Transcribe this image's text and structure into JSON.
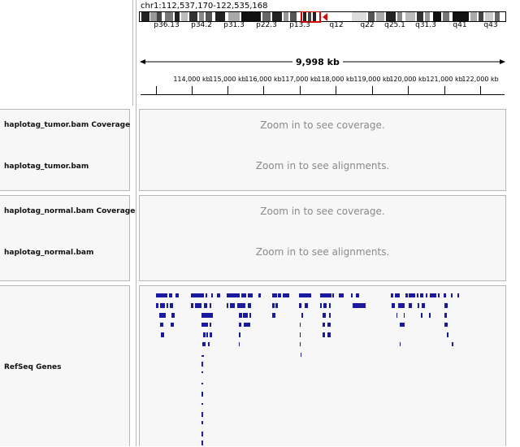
{
  "locus": {
    "text": "chr1:112,537,170-122,535,168"
  },
  "ideogram": {
    "band_labels": [
      "p36.13",
      "p34.2",
      "p31.3",
      "p22.3",
      "p13.3",
      "q12",
      "q22",
      "q25.1",
      "q31.3",
      "q41",
      "q43"
    ],
    "highlight_color": "#dd0000",
    "centromere_color": "#cc1010"
  },
  "ruler": {
    "span_label": "9,998 kb",
    "tick_labels": [
      "114,000 kb",
      "115,000 kb",
      "116,000 kb",
      "117,000 kb",
      "118,000 kb",
      "119,000 kb",
      "120,000 kb",
      "121,000 kb",
      "122,000 kb"
    ]
  },
  "tracks": {
    "tumor_coverage": {
      "label": "haplotag_tumor.bam Coverage",
      "message": "Zoom in to see coverage."
    },
    "tumor_alignments": {
      "label": "haplotag_tumor.bam",
      "message": "Zoom in to see alignments."
    },
    "normal_coverage": {
      "label": "haplotag_normal.bam Coverage",
      "message": "Zoom in to see coverage."
    },
    "normal_alignments": {
      "label": "haplotag_normal.bam",
      "message": "Zoom in to see alignments."
    },
    "refseq": {
      "label": "RefSeq Genes",
      "feature_color": "#1a1a9e"
    }
  }
}
